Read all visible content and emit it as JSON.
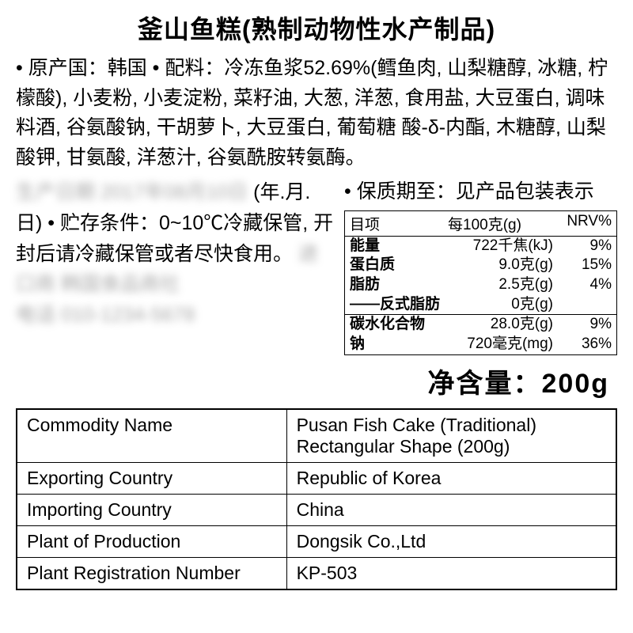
{
  "title": "釜山鱼糕(熟制动物性水产制品)",
  "ingredients": "• 原产国：韩国 • 配料：冷冻鱼浆52.69%(鳕鱼肉, 山梨糖醇, 冰糖, 柠檬酸), 小麦粉, 小麦淀粉, 菜籽油, 大葱, 洋葱, 食用盐, 大豆蛋白, 调味料酒, 谷氨酸钠, 干胡萝卜, 大豆蛋白, 葡萄糖 酸-δ-内酯, 木糖醇, 山梨酸钾, 甘氨酸, 洋葱汁, 谷氨酰胺转氨酶。",
  "leftText1": "(年.月.日) • 贮存条件：0~10℃冷藏保管, 开封后请冷藏保管或者尽快食用。",
  "blurLine1": "生产日期 2017年08月10日",
  "blurLine2": "进口商 韩国食品商社",
  "blurLine3": "电话 010-1234-5678",
  "shelfLife": "• 保质期至：见产品包装表示",
  "nutrition": {
    "header": {
      "c1": "目项",
      "c2": "每100克(g)",
      "c3": "NRV%"
    },
    "rows": [
      {
        "label": "能量",
        "value": "722千焦(kJ)",
        "nrv": "9%"
      },
      {
        "label": "蛋白质",
        "value": "9.0克(g)",
        "nrv": "15%"
      },
      {
        "label": "脂肪",
        "value": "2.5克(g)",
        "nrv": "4%"
      },
      {
        "label": "——反式脂肪",
        "value": "0克(g)",
        "nrv": ""
      },
      {
        "label": "碳水化合物",
        "value": "28.0克(g)",
        "nrv": "9%"
      },
      {
        "label": "钠",
        "value": "720毫克(mg)",
        "nrv": "36%"
      }
    ]
  },
  "netWeight": "净含量：200g",
  "infoTable": [
    {
      "label": "Commodity Name",
      "value": "Pusan Fish Cake (Traditional) Rectangular Shape (200g)"
    },
    {
      "label": "Exporting Country",
      "value": "Republic of Korea"
    },
    {
      "label": "Importing Country",
      "value": "China"
    },
    {
      "label": "Plant of Production",
      "value": "Dongsik Co.,Ltd"
    },
    {
      "label": "Plant Registration Number",
      "value": "KP-503"
    }
  ]
}
